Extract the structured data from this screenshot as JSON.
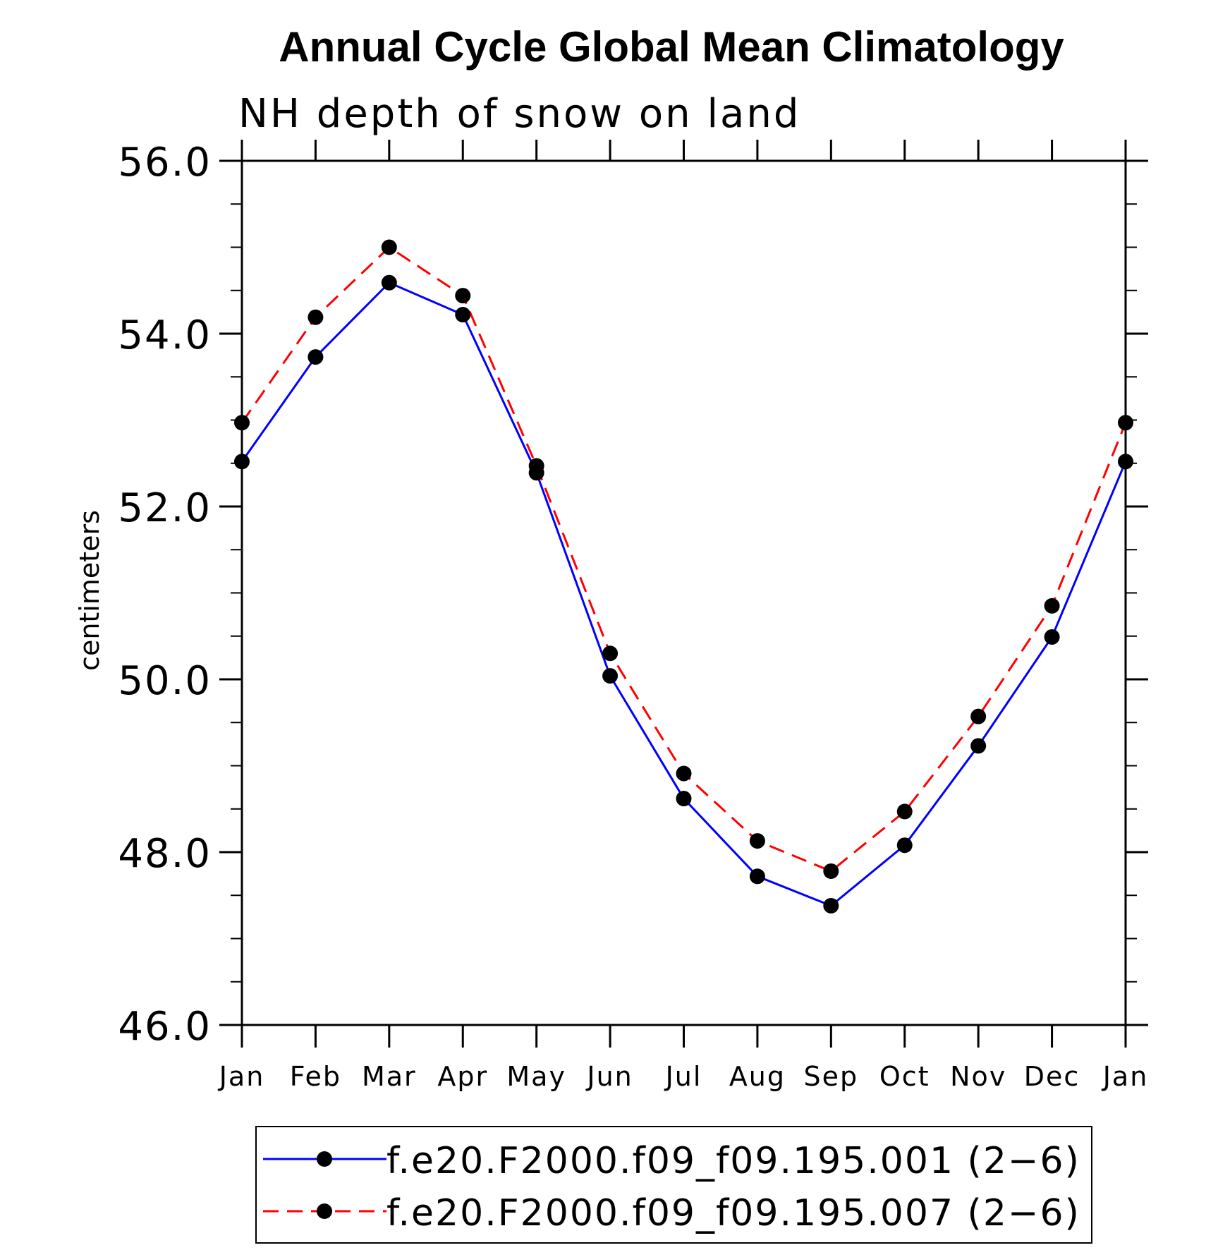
{
  "chart_data": {
    "type": "line",
    "title": "Annual Cycle Global Mean Climatology",
    "subtitle": "NH depth of snow on land",
    "xlabel": "",
    "ylabel": "centimeters",
    "categories": [
      "Jan",
      "Feb",
      "Mar",
      "Apr",
      "May",
      "Jun",
      "Jul",
      "Aug",
      "Sep",
      "Oct",
      "Nov",
      "Dec",
      "Jan"
    ],
    "ylim": [
      46.0,
      56.0
    ],
    "yticks": [
      46.0,
      48.0,
      50.0,
      52.0,
      54.0,
      56.0
    ],
    "ytick_labels": [
      "46.0",
      "48.0",
      "50.0",
      "52.0",
      "54.0",
      "56.0"
    ],
    "y_minor_step": 0.5,
    "grid": false,
    "legend_position": "bottom",
    "series": [
      {
        "name": "f.e20.F2000.f09_f09.195.001 (2−6)",
        "color": "#0000ff",
        "line_style": "solid",
        "marker": "filled-circle",
        "marker_color": "#000000",
        "values": [
          52.52,
          53.73,
          54.59,
          54.22,
          52.39,
          50.04,
          48.62,
          47.72,
          47.38,
          48.08,
          49.23,
          50.49,
          52.52
        ]
      },
      {
        "name": "f.e20.F2000.f09_f09.195.007 (2−6)",
        "color": "#ff0000",
        "line_style": "dashed",
        "marker": "filled-circle",
        "marker_color": "#000000",
        "values": [
          52.97,
          54.19,
          55.0,
          54.44,
          52.47,
          50.3,
          48.91,
          48.13,
          47.78,
          48.47,
          49.57,
          50.85,
          52.97
        ]
      }
    ]
  }
}
